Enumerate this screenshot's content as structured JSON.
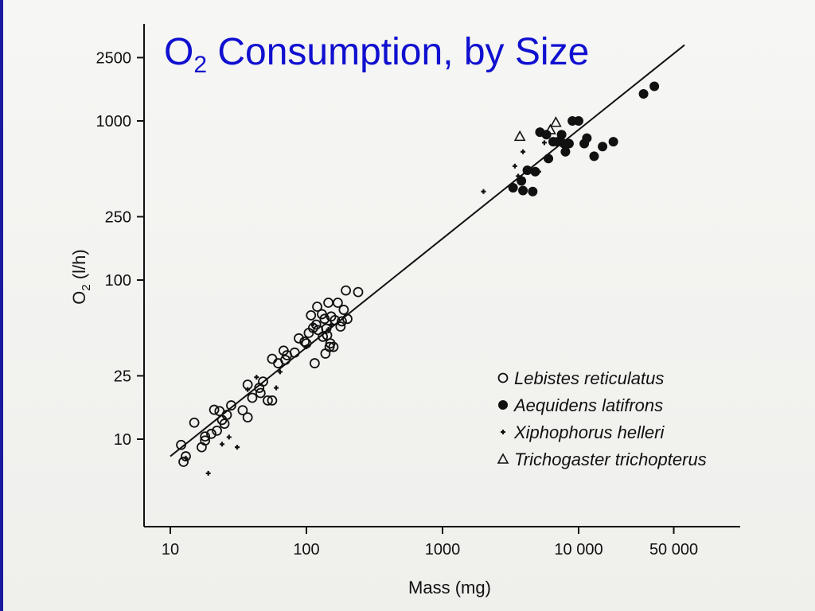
{
  "slide": {
    "title_main": "O",
    "title_sub": "2",
    "title_rest": " Consumption, by Size",
    "title_color": "#1010d0"
  },
  "chart_data": {
    "type": "scatter",
    "title": "",
    "xlabel": "Mass (mg)",
    "ylabel_main": "O",
    "ylabel_sub": "2",
    "ylabel_rest": " (l/h)",
    "xscale": "log",
    "yscale": "log",
    "xlim": [
      7,
      100000
    ],
    "ylim": [
      3,
      4000
    ],
    "grid": false,
    "legend_position": "lower-right",
    "x_ticks": [
      {
        "value": 10,
        "label": "10"
      },
      {
        "value": 100,
        "label": "100"
      },
      {
        "value": 1000,
        "label": "1000"
      },
      {
        "value": 10000,
        "label": "10 000"
      },
      {
        "value": 50000,
        "label": "50 000"
      }
    ],
    "y_ticks": [
      {
        "value": 10,
        "label": "10"
      },
      {
        "value": 25,
        "label": "25"
      },
      {
        "value": 100,
        "label": "100"
      },
      {
        "value": 250,
        "label": "250"
      },
      {
        "value": 1000,
        "label": "1000"
      },
      {
        "value": 2500,
        "label": "2500"
      }
    ],
    "fit_line": {
      "x": [
        10,
        60000
      ],
      "y": [
        7.8,
        3000
      ]
    },
    "series": [
      {
        "name": "Lebistes reticulatus",
        "marker": "open-circle",
        "points": [
          [
            12,
            9.2
          ],
          [
            12.5,
            7.2
          ],
          [
            13,
            7.8
          ],
          [
            15,
            12.7
          ],
          [
            17,
            8.9
          ],
          [
            18,
            10.4
          ],
          [
            18,
            9.8
          ],
          [
            20,
            10.8
          ],
          [
            21,
            15.3
          ],
          [
            22,
            11.3
          ],
          [
            23,
            15
          ],
          [
            24,
            13.2
          ],
          [
            25,
            12.5
          ],
          [
            26,
            14.2
          ],
          [
            28,
            16.3
          ],
          [
            34,
            15.2
          ],
          [
            37,
            22
          ],
          [
            37,
            13.7
          ],
          [
            40,
            18.2
          ],
          [
            45,
            21
          ],
          [
            46,
            19.5
          ],
          [
            48,
            23
          ],
          [
            52,
            17.5
          ],
          [
            56,
            17.5
          ],
          [
            56,
            32
          ],
          [
            62,
            30
          ],
          [
            68,
            36
          ],
          [
            70,
            31.5
          ],
          [
            72,
            33.7
          ],
          [
            82,
            35
          ],
          [
            88,
            43
          ],
          [
            97,
            41
          ],
          [
            100,
            40
          ],
          [
            104,
            46.5
          ],
          [
            108,
            60
          ],
          [
            112,
            50
          ],
          [
            115,
            30
          ],
          [
            118,
            52.5
          ],
          [
            120,
            68
          ],
          [
            122,
            48.5
          ],
          [
            130,
            61
          ],
          [
            132,
            44
          ],
          [
            136,
            57
          ],
          [
            138,
            34.5
          ],
          [
            140,
            49.5
          ],
          [
            142,
            45
          ],
          [
            145,
            72
          ],
          [
            148,
            38
          ],
          [
            150,
            40
          ],
          [
            152,
            59
          ],
          [
            158,
            38
          ],
          [
            162,
            56
          ],
          [
            170,
            72
          ],
          [
            178,
            51
          ],
          [
            182,
            55
          ],
          [
            188,
            65
          ],
          [
            195,
            86
          ],
          [
            200,
            57
          ],
          [
            240,
            84
          ]
        ]
      },
      {
        "name": "Aequidens latifrons",
        "marker": "filled-circle",
        "points": [
          [
            3300,
            380
          ],
          [
            3800,
            420
          ],
          [
            3900,
            365
          ],
          [
            4200,
            490
          ],
          [
            4600,
            360
          ],
          [
            4800,
            480
          ],
          [
            5200,
            850
          ],
          [
            5800,
            820
          ],
          [
            6000,
            580
          ],
          [
            6500,
            740
          ],
          [
            7000,
            740
          ],
          [
            7500,
            820
          ],
          [
            7800,
            720
          ],
          [
            8000,
            640
          ],
          [
            8500,
            720
          ],
          [
            9000,
            1000
          ],
          [
            10000,
            1000
          ],
          [
            11000,
            720
          ],
          [
            11500,
            780
          ],
          [
            13000,
            600
          ],
          [
            15000,
            690
          ],
          [
            18000,
            740
          ],
          [
            30000,
            1480
          ],
          [
            36000,
            1650
          ]
        ]
      },
      {
        "name": "Xiphophorus helleri",
        "marker": "plus",
        "points": [
          [
            13,
            7.6
          ],
          [
            19,
            6.1
          ],
          [
            24,
            9.3
          ],
          [
            27,
            10.3
          ],
          [
            31,
            8.9
          ],
          [
            37,
            20.5
          ],
          [
            43,
            24.5
          ],
          [
            60,
            21
          ],
          [
            64,
            26.5
          ],
          [
            100,
            38
          ],
          [
            112,
            53
          ],
          [
            145,
            49
          ],
          [
            152,
            52.5
          ],
          [
            2000,
            360
          ],
          [
            3400,
            520
          ],
          [
            3600,
            450
          ],
          [
            3900,
            640
          ],
          [
            5100,
            480
          ],
          [
            5600,
            730
          ]
        ]
      },
      {
        "name": "Trichogaster trichopterus",
        "marker": "open-triangle",
        "points": [
          [
            3700,
            800
          ],
          [
            6200,
            880
          ],
          [
            6800,
            980
          ]
        ]
      }
    ]
  }
}
